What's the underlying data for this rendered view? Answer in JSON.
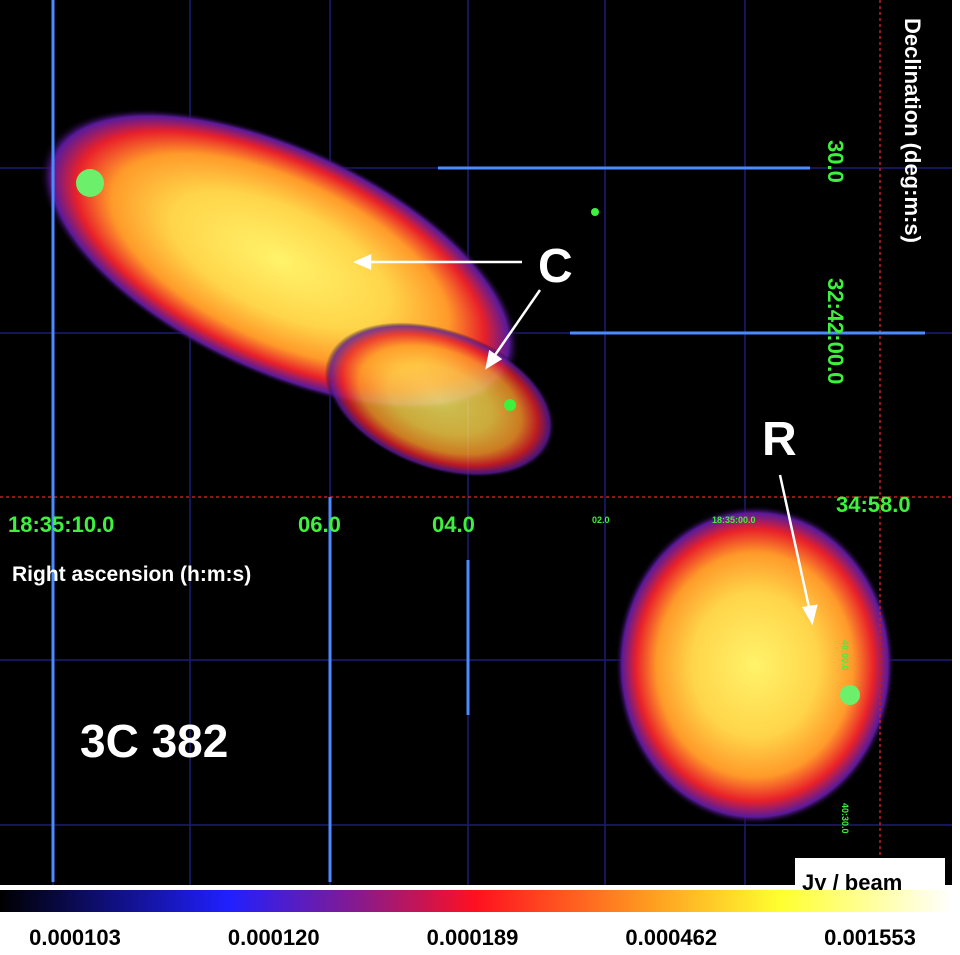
{
  "axes": {
    "y_label": "Declination (deg:m:s)",
    "y_ticks": [
      "30.0",
      "32:42:00.0",
      "34:58.0"
    ],
    "x_ticks": [
      "18:35:10.0",
      "06.0",
      "04.0"
    ],
    "x_label": "Right ascension (h:m:s)",
    "small_ticks": [
      "02.0",
      "18:35:00.0",
      "40:00.0",
      "40:30.0"
    ]
  },
  "annotations": {
    "source": "3C 382",
    "core": "C",
    "lobe": "R"
  },
  "colorbar": {
    "unit": "Jy / beam",
    "ticks": [
      "0.000103",
      "0.000120",
      "0.000189",
      "0.000462",
      "0.001553"
    ]
  }
}
